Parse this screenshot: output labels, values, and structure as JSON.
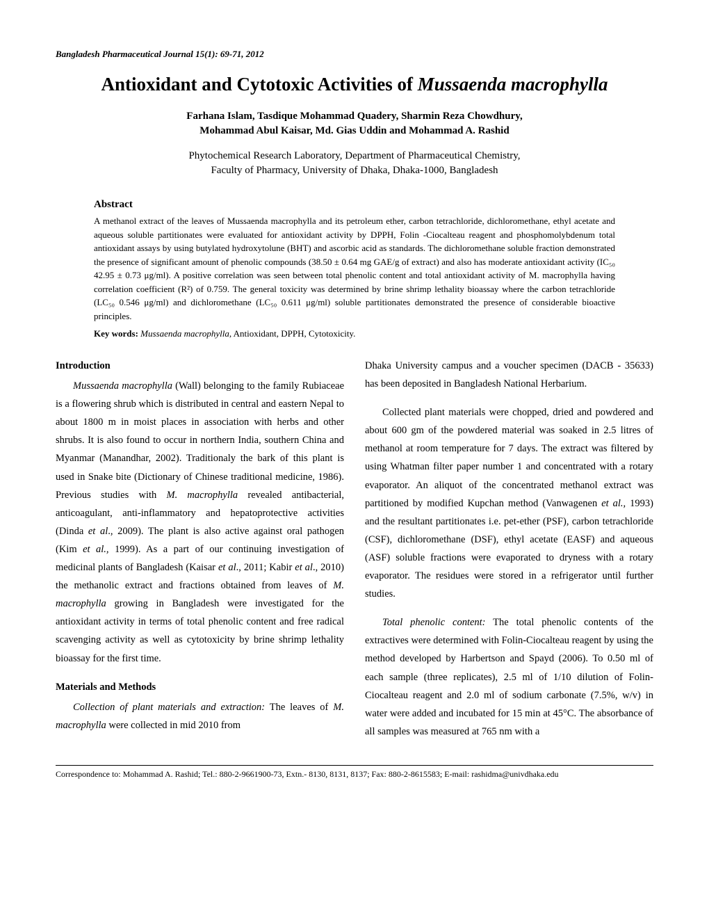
{
  "journal_header": "Bangladesh Pharmaceutical Journal  15(1): 69-71, 2012",
  "title_main": "Antioxidant and Cytotoxic Activities of ",
  "title_italic": "Mussaenda macrophylla",
  "authors_line1": "Farhana Islam, Tasdique Mohammad Quadery, Sharmin Reza Chowdhury,",
  "authors_line2": "Mohammad Abul Kaisar, Md. Gias Uddin and Mohammad A. Rashid",
  "affiliation_line1": "Phytochemical Research Laboratory, Department of Pharmaceutical Chemistry,",
  "affiliation_line2": "Faculty of Pharmacy, University of Dhaka, Dhaka-1000, Bangladesh",
  "abstract_heading": "Abstract",
  "abstract_text": "A methanol extract of the leaves of Mussaenda macrophylla  and its petroleum ether, carbon tetrachloride, dichloromethane, ethyl acetate and aqueous soluble partitionates were evaluated for antioxidant activity by DPPH, Folin -Ciocalteau reagent and phosphomolybdenum total antioxidant assays by using butylated hydroxytolune (BHT) and ascorbic acid as standards. The dichloromethane soluble fraction demonstrated the presence of significant amount of phenolic compounds (38.50 ± 0.64 mg GAE/g of extract) and also has moderate antioxidant activity (IC₅₀ 42.95 ± 0.73 μg/ml).  A positive correlation was seen between total phenolic content and total antioxidant activity of M. macrophylla having correlation coefficient (R²) of 0.759. The general toxicity was determined by brine shrimp lethality bioassay where the carbon tetrachloride (LC₅₀ 0.546 μg/ml) and dichloromethane (LC₅₀ 0.611 μg/ml) soluble partitionates demonstrated the presence of considerable bioactive principles.",
  "keywords_label": "Key words: ",
  "keywords_italic": "Mussaenda macrophylla",
  "keywords_rest": ", Antioxidant, DPPH, Cytotoxicity.",
  "intro_heading": "Introduction",
  "intro_p1_italic": "Mussaenda macrophylla",
  "intro_p1_a": " (Wall) belonging to the family Rubiaceae is a flowering shrub which is distributed in central and eastern Nepal to about 1800 m in moist places in association with herbs and other shrubs. It is also found to occur in northern India, southern China and Myanmar (Manandhar, 2002). Traditionaly the bark of this plant is used in Snake bite (Dictionary of Chinese traditional medicine, 1986). Previous studies with ",
  "intro_p1_italic2": "M. macrophylla",
  "intro_p1_b": " revealed antibacterial, anticoagulant, anti-inflammatory and hepatoprotective activities (Dinda ",
  "intro_p1_italic3": "et al",
  "intro_p1_c": "., 2009). The plant is also active against oral pathogen (Kim ",
  "intro_p1_italic4": "et al.,",
  "intro_p1_d": " 1999). As a part of our continuing investigation of medicinal plants of Bangladesh (Kaisar ",
  "intro_p1_italic5": "et al",
  "intro_p1_e": "., 2011; Kabir ",
  "intro_p1_italic6": "et al",
  "intro_p1_f": "., 2010) the methanolic extract and fractions obtained from leaves of ",
  "intro_p1_italic7": "M. macrophylla",
  "intro_p1_g": " growing in Bangladesh were investigated for the antioxidant activity in terms of total phenolic content and free radical scavenging activity as well as cytotoxicity by brine shrimp lethality bioassay for the first time.",
  "mm_heading": "Materials and Methods",
  "mm_p1_italic": "Collection of plant materials and extraction:",
  "mm_p1_a": " The leaves of ",
  "mm_p1_italic2": "M. macrophylla",
  "mm_p1_b": " were collected in mid 2010 from",
  "col2_p1": "Dhaka University campus and a voucher specimen (DACB - 35633) has been deposited in Bangladesh National Herbarium.",
  "col2_p2_a": "Collected plant materials were chopped, dried and powdered and about 600 gm of the powdered material was soaked in 2.5 litres of methanol at room temperature for 7 days. The extract was filtered by using Whatman filter paper number 1 and concentrated with a rotary evaporator. An aliquot of the concentrated methanol extract was partitioned by modified Kupchan method (Vanwagenen ",
  "col2_p2_italic": "et al.,",
  "col2_p2_b": " 1993) and the resultant partitionates i.e. pet-ether (PSF), carbon tetrachloride (CSF), dichloromethane (DSF), ethyl acetate (EASF) and aqueous (ASF) soluble fractions were evaporated to dryness with a rotary evaporator. The residues were stored in a refrigerator until further studies.",
  "col2_p3_italic": "Total phenolic content:",
  "col2_p3_a": " The total phenolic contents of the extractives were determined with Folin-Ciocalteau reagent by using the method developed by Harbertson and Spayd (2006). To 0.50 ml of each sample (three replicates), 2.5 ml of 1/10 dilution of Folin-Ciocalteau reagent and 2.0 ml of sodium carbonate (7.5%, w/v) in water were added and incubated for 15 min at 45°C. The absorbance of all samples was measured at 765 nm with a",
  "correspondence": "Correspondence to: Mohammad A. Rashid; Tel.: 880-2-9661900-73, Extn.- 8130, 8131, 8137; Fax: 880-2-8615583; E-mail: rashidma@univdhaka.edu"
}
